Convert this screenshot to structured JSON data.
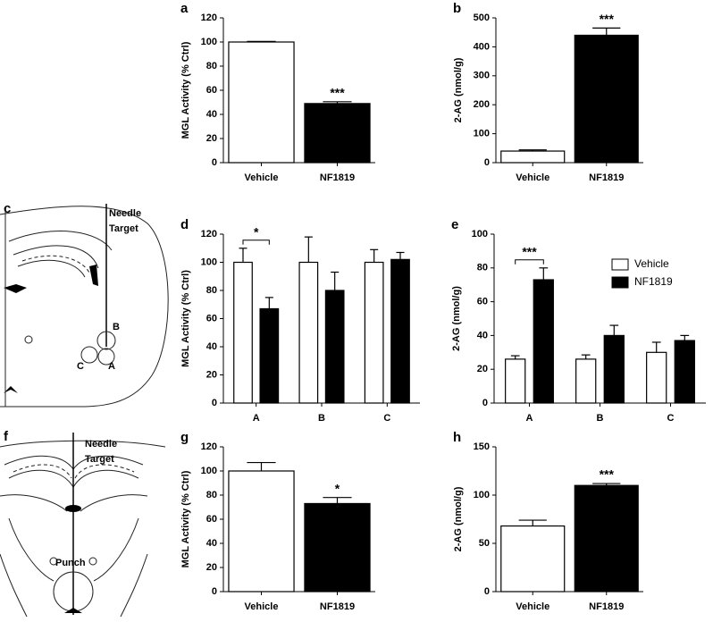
{
  "chart_data": [
    {
      "type": "bar",
      "panel": "a",
      "ylabel": "MGL Activity (% Ctrl)",
      "categories": [
        "Vehicle",
        "NF1819"
      ],
      "values": [
        100,
        49
      ],
      "errors": [
        0.5,
        1.5
      ],
      "colors": [
        "#ffffff",
        "#000000"
      ],
      "ylim": [
        0,
        120
      ],
      "yticks": [
        0,
        20,
        40,
        60,
        80,
        100,
        120
      ],
      "annotations": [
        {
          "text": "***",
          "category": "NF1819"
        }
      ]
    },
    {
      "type": "bar",
      "panel": "b",
      "ylabel": "2-AG (nmol/g)",
      "categories": [
        "Vehicle",
        "NF1819"
      ],
      "values": [
        40,
        440
      ],
      "errors": [
        4,
        25
      ],
      "colors": [
        "#ffffff",
        "#000000"
      ],
      "ylim": [
        0,
        500
      ],
      "yticks": [
        0,
        100,
        200,
        300,
        400,
        500
      ],
      "annotations": [
        {
          "text": "***",
          "category": "NF1819"
        }
      ]
    },
    {
      "type": "bar",
      "panel": "d",
      "ylabel": "MGL Activity (% Ctrl)",
      "categories": [
        "A",
        "B",
        "C"
      ],
      "series": [
        {
          "color": "#ffffff",
          "values": [
            100,
            100,
            100
          ],
          "errors": [
            10,
            18,
            9
          ]
        },
        {
          "color": "#000000",
          "values": [
            67,
            80,
            102
          ],
          "errors": [
            8,
            13,
            5
          ]
        }
      ],
      "ylim": [
        0,
        120
      ],
      "yticks": [
        0,
        20,
        40,
        60,
        80,
        100,
        120
      ],
      "annotations": [
        {
          "text": "*",
          "category": "A"
        }
      ]
    },
    {
      "type": "bar",
      "panel": "e",
      "ylabel": "2-AG (nmol/g)",
      "categories": [
        "A",
        "B",
        "C"
      ],
      "series": [
        {
          "name": "Vehicle",
          "color": "#ffffff",
          "values": [
            26,
            26,
            30
          ],
          "errors": [
            2,
            2.5,
            6
          ]
        },
        {
          "name": "NF1819",
          "color": "#000000",
          "values": [
            73,
            40,
            37
          ],
          "errors": [
            7,
            6,
            3
          ]
        }
      ],
      "ylim": [
        0,
        100
      ],
      "yticks": [
        0,
        20,
        40,
        60,
        80,
        100
      ],
      "legend": "upper right",
      "annotations": [
        {
          "text": "***",
          "category": "A"
        }
      ]
    },
    {
      "type": "bar",
      "panel": "g",
      "ylabel": "MGL Activity (% Ctrl)",
      "categories": [
        "Vehicle",
        "NF1819"
      ],
      "values": [
        100,
        73
      ],
      "errors": [
        7,
        5
      ],
      "colors": [
        "#ffffff",
        "#000000"
      ],
      "ylim": [
        0,
        120
      ],
      "yticks": [
        0,
        20,
        40,
        60,
        80,
        100,
        120
      ],
      "annotations": [
        {
          "text": "*",
          "category": "NF1819"
        }
      ]
    },
    {
      "type": "bar",
      "panel": "h",
      "ylabel": "2-AG (nmol/g)",
      "categories": [
        "Vehicle",
        "NF1819"
      ],
      "values": [
        68,
        110
      ],
      "errors": [
        6,
        2
      ],
      "colors": [
        "#ffffff",
        "#000000"
      ],
      "ylim": [
        0,
        150
      ],
      "yticks": [
        0,
        50,
        100,
        150
      ],
      "annotations": [
        {
          "text": "***",
          "category": "NF1819"
        }
      ]
    }
  ],
  "diagrams": [
    {
      "panel": "c",
      "labels": [
        "Needle",
        "Target",
        "B",
        "C",
        "A"
      ]
    },
    {
      "panel": "f",
      "labels": [
        "Needle",
        "Target",
        "Punch"
      ]
    }
  ]
}
